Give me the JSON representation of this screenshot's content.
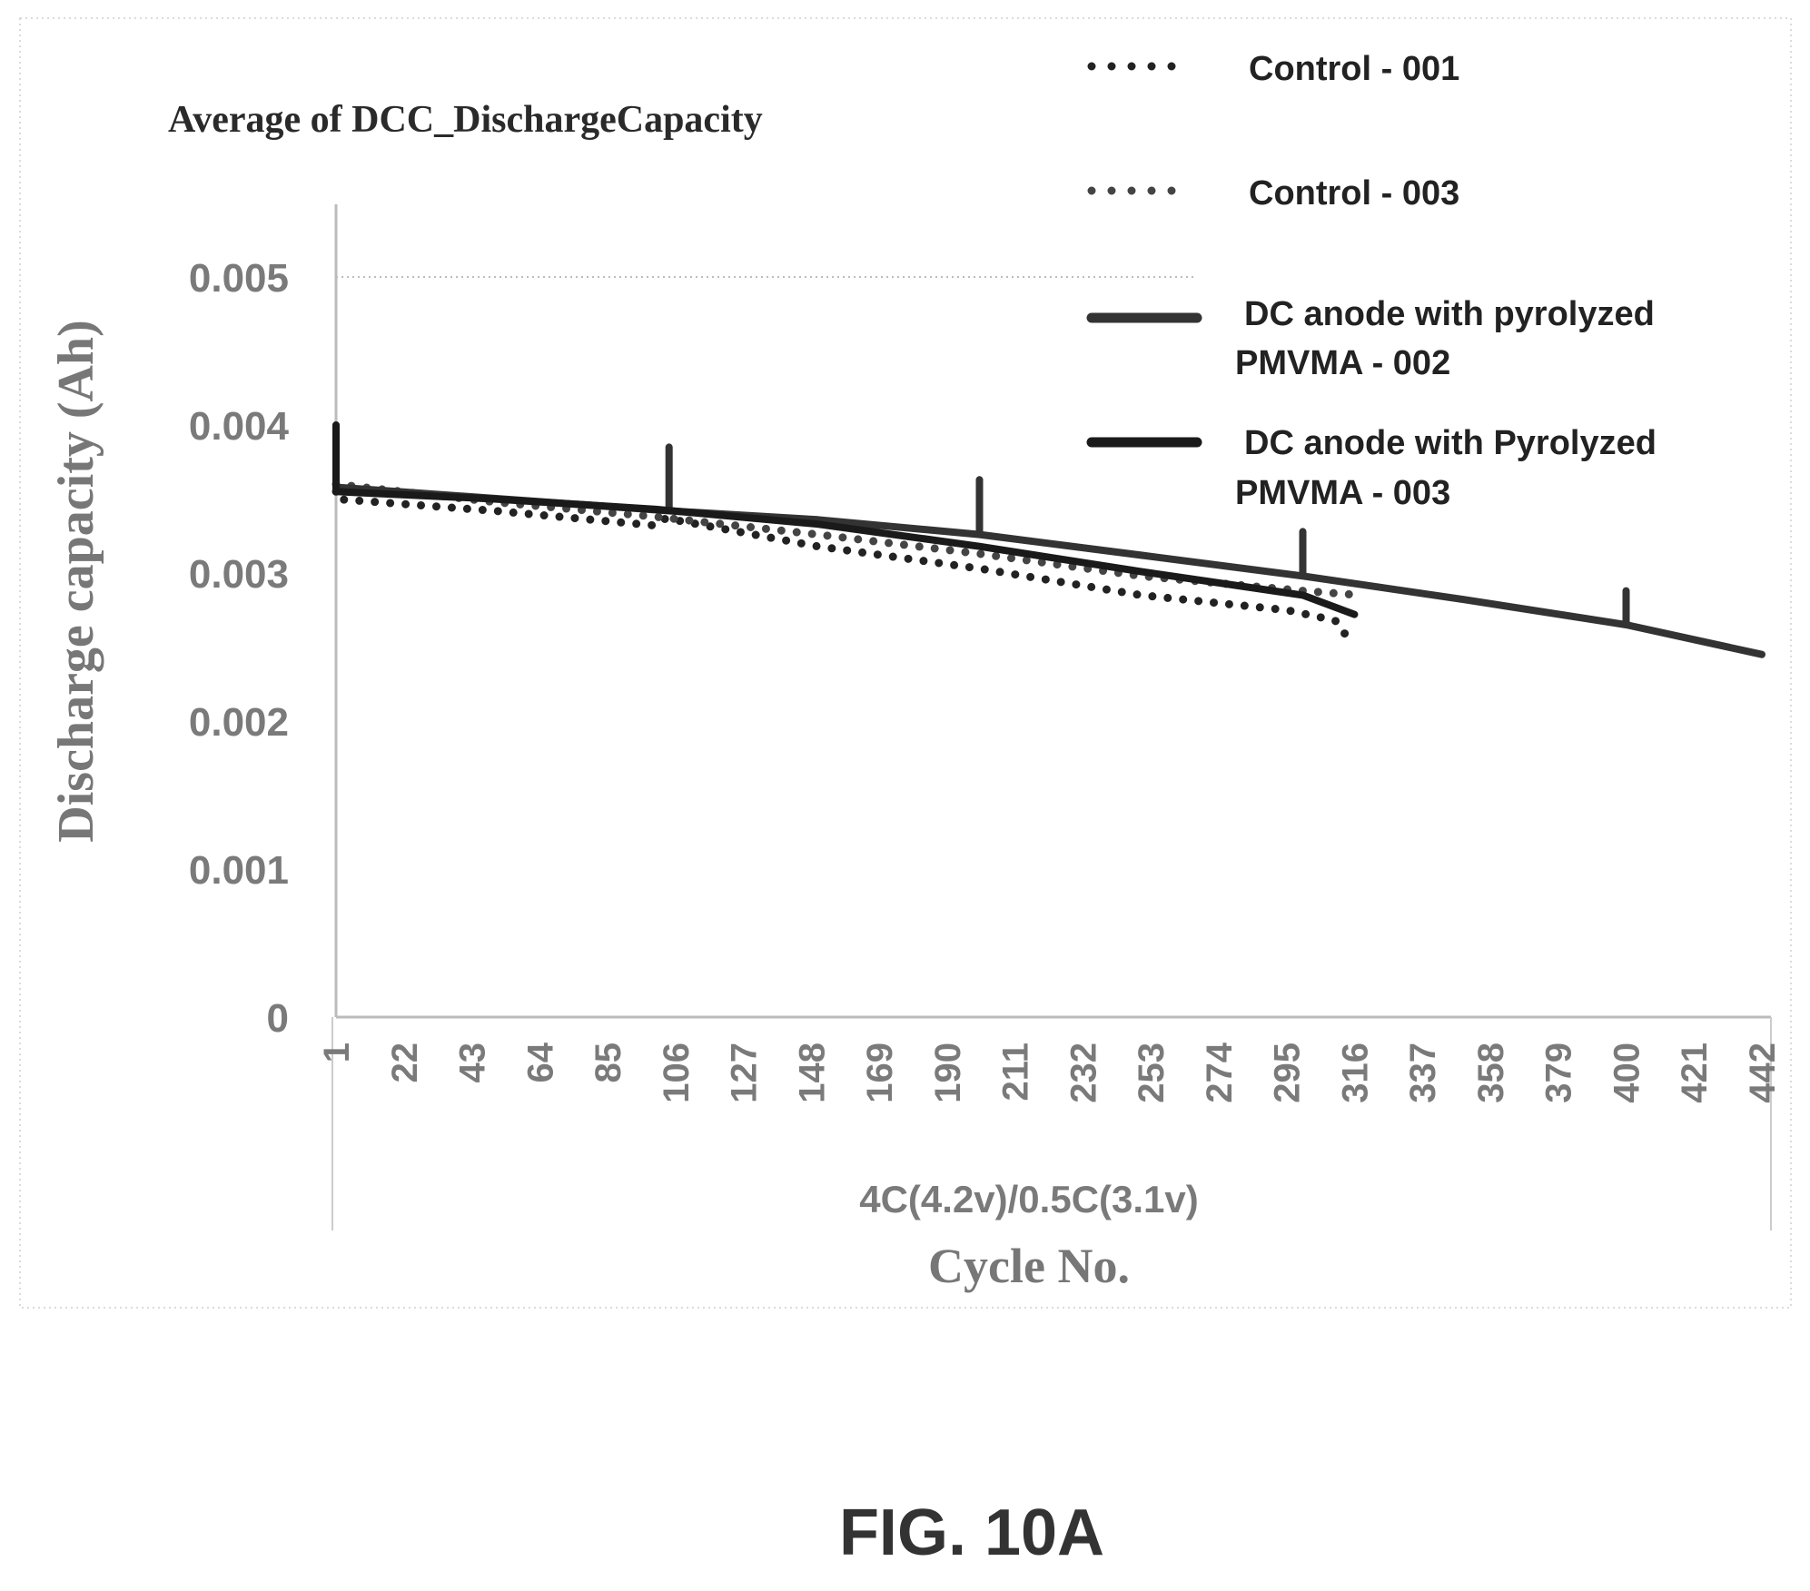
{
  "figure_label": "FIG. 10A",
  "chart_data": {
    "type": "line",
    "title": "Average of DCC_DischargeCapacity",
    "ylabel": "Discharge capacity (Ah)",
    "xlabel": "Cycle No.",
    "x_subtitle": "4C(4.2v)/0.5C(3.1v)",
    "ylim": [
      0,
      0.005
    ],
    "xlim": [
      1,
      442
    ],
    "yticks": [
      0,
      0.001,
      0.002,
      0.003,
      0.004,
      0.005
    ],
    "ytick_labels": [
      "0",
      "0.001",
      "0.002",
      "0.003",
      "0.004",
      "0.005"
    ],
    "xticks": [
      1,
      22,
      43,
      64,
      85,
      106,
      127,
      148,
      169,
      190,
      211,
      232,
      253,
      274,
      295,
      316,
      337,
      358,
      379,
      400,
      421,
      442
    ],
    "xtick_labels": [
      "1",
      "22",
      "43",
      "64",
      "85",
      "106",
      "127",
      "148",
      "169",
      "190",
      "211",
      "232",
      "253",
      "274",
      "295",
      "316",
      "337",
      "358",
      "379",
      "400",
      "421",
      "442"
    ],
    "grid": "horizontal line at 0.005",
    "legend_position": "top-right",
    "series": [
      {
        "name": "Control - 001",
        "style": "dotted",
        "color": "#222222",
        "points": [
          [
            1,
            0.00355
          ],
          [
            1,
            0.0035
          ],
          [
            50,
            0.00342
          ],
          [
            100,
            0.00332
          ],
          [
            103,
            0.00337
          ],
          [
            150,
            0.00318
          ],
          [
            200,
            0.00303
          ],
          [
            250,
            0.00285
          ],
          [
            295,
            0.00275
          ],
          [
            310,
            0.00268
          ],
          [
            314,
            0.00256
          ]
        ]
      },
      {
        "name": "Control - 003",
        "style": "dotted",
        "color": "#444444",
        "points": [
          [
            1,
            0.0036
          ],
          [
            50,
            0.00348
          ],
          [
            100,
            0.00338
          ],
          [
            150,
            0.00326
          ],
          [
            200,
            0.00313
          ],
          [
            250,
            0.00298
          ],
          [
            300,
            0.00288
          ],
          [
            318,
            0.00285
          ]
        ]
      },
      {
        "name": "DC anode with pyrolyzed PMVMA - 002",
        "style": "solid",
        "color": "#333333",
        "points": [
          [
            1,
            0.00358
          ],
          [
            104,
            0.00342
          ],
          [
            104,
            0.00385
          ],
          [
            104,
            0.00342
          ],
          [
            150,
            0.00336
          ],
          [
            200,
            0.00326
          ],
          [
            200,
            0.00363
          ],
          [
            200,
            0.00326
          ],
          [
            250,
            0.00312
          ],
          [
            300,
            0.00298
          ],
          [
            300,
            0.00328
          ],
          [
            300,
            0.00298
          ],
          [
            350,
            0.00282
          ],
          [
            400,
            0.00265
          ],
          [
            400,
            0.00288
          ],
          [
            400,
            0.00265
          ],
          [
            442,
            0.00245
          ]
        ]
      },
      {
        "name": "DC anode with Pyrolyzed PMVMA - 003",
        "style": "solid",
        "color": "#1a1a1a",
        "points": [
          [
            1,
            0.004
          ],
          [
            1,
            0.00355
          ],
          [
            50,
            0.0035
          ],
          [
            100,
            0.00343
          ],
          [
            150,
            0.00333
          ],
          [
            200,
            0.00318
          ],
          [
            250,
            0.00301
          ],
          [
            300,
            0.00285
          ],
          [
            316,
            0.00272
          ]
        ]
      }
    ]
  }
}
